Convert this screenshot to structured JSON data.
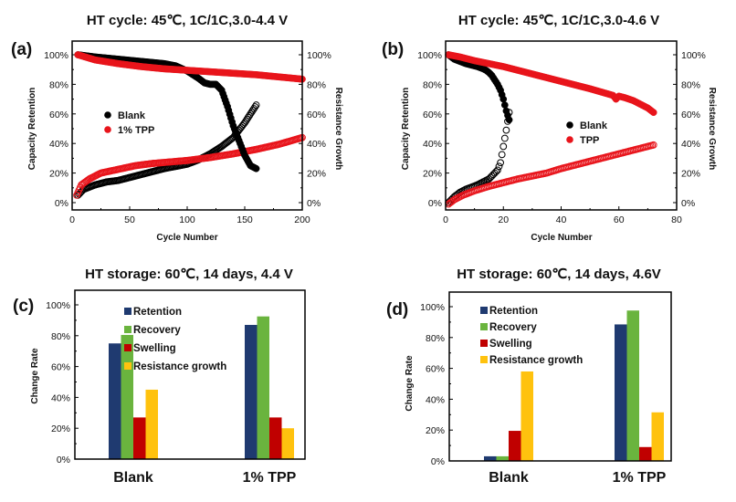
{
  "chart_data": [
    {
      "id": "a",
      "type": "scatter",
      "panel_label": "(a)",
      "title": "HT cycle: 45℃, 1C/1C,3.0-4.4 V",
      "xlabel": "Cycle Number",
      "ylabel": "Capacity Retention",
      "y2label": "Resistance Growth",
      "xlim": [
        0,
        200
      ],
      "ylim": [
        -5,
        112
      ],
      "y2lim": [
        -5,
        112
      ],
      "xticks": [
        0,
        50,
        100,
        150,
        200
      ],
      "xtick_labels": [
        "0",
        "50",
        "100",
        "150",
        "200"
      ],
      "yticks": [
        0,
        20,
        40,
        60,
        80,
        100
      ],
      "ytick_labels": [
        "0%",
        "20%",
        "40%",
        "60%",
        "80%",
        "100%"
      ],
      "y2tick_labels": [
        "0%",
        "20%",
        "40%",
        "60%",
        "80%",
        "100%"
      ],
      "legend": {
        "placement": "center-left",
        "entries": [
          {
            "label": "Blank",
            "color": "#000000"
          },
          {
            "label": "1% TPP",
            "color": "#e8141b"
          }
        ]
      },
      "series": [
        {
          "name": "Blank",
          "metric": "Capacity Retention",
          "marker": "filled",
          "color": "#000000",
          "x": [
            5,
            20,
            40,
            60,
            80,
            90,
            100,
            110,
            115,
            120,
            125,
            130,
            135,
            140,
            145,
            150,
            155,
            160
          ],
          "y": [
            100,
            98.5,
            97,
            95.5,
            94,
            92.5,
            89,
            84,
            81,
            80,
            80,
            76,
            65,
            52,
            42,
            32,
            25,
            23
          ]
        },
        {
          "name": "1% TPP",
          "metric": "Capacity Retention",
          "marker": "filled",
          "color": "#e8141b",
          "x": [
            5,
            20,
            40,
            60,
            80,
            100,
            120,
            140,
            160,
            180,
            200
          ],
          "y": [
            100,
            96.5,
            94,
            92,
            90.5,
            89.5,
            88.5,
            87.5,
            86.5,
            85,
            83.5
          ]
        },
        {
          "name": "Blank",
          "metric": "Resistance Growth",
          "marker": "open",
          "color": "#000000",
          "x": [
            5,
            10,
            20,
            30,
            40,
            50,
            60,
            70,
            80,
            90,
            100,
            110,
            120,
            130,
            140,
            150,
            155,
            160
          ],
          "y": [
            5,
            9,
            12,
            14,
            15,
            17,
            19,
            21,
            23,
            24.5,
            26,
            29,
            33,
            38,
            44,
            54,
            60,
            66
          ]
        },
        {
          "name": "1% TPP",
          "metric": "Resistance Growth",
          "marker": "open",
          "color": "#e8141b",
          "x": [
            4,
            8,
            15,
            25,
            40,
            55,
            70,
            85,
            100,
            120,
            140,
            160,
            180,
            200
          ],
          "y": [
            5,
            12,
            16,
            20,
            22.5,
            25,
            26.5,
            27.5,
            28.5,
            30.5,
            33,
            36,
            39.5,
            44
          ]
        }
      ]
    },
    {
      "id": "b",
      "type": "scatter",
      "panel_label": "(b)",
      "title": "HT cycle: 45℃, 1C/1C,3.0-4.6 V",
      "xlabel": "Cycle Number",
      "ylabel": "Capacity Retention",
      "y2label": "Resistance Growth",
      "xlim": [
        0,
        80
      ],
      "ylim": [
        -5,
        112
      ],
      "y2lim": [
        -5,
        112
      ],
      "xticks": [
        0,
        20,
        40,
        60,
        80
      ],
      "xtick_labels": [
        "0",
        "20",
        "40",
        "60",
        "80"
      ],
      "yticks": [
        0,
        20,
        40,
        60,
        80,
        100
      ],
      "ytick_labels": [
        "0%",
        "20%",
        "40%",
        "60%",
        "80%",
        "100%"
      ],
      "y2tick_labels": [
        "0%",
        "20%",
        "40%",
        "60%",
        "80%",
        "100%"
      ],
      "legend": {
        "placement": "center-right",
        "entries": [
          {
            "label": "Blank",
            "color": "#000000"
          },
          {
            "label": "TPP",
            "color": "#e8141b"
          }
        ]
      },
      "series": [
        {
          "name": "Blank",
          "metric": "Capacity Retention",
          "marker": "filled",
          "color": "#000000",
          "x": [
            1,
            3,
            5,
            7,
            9,
            11,
            13,
            14,
            15,
            16,
            17,
            18,
            19,
            20,
            21,
            22
          ],
          "y": [
            100,
            97,
            95.5,
            94,
            93,
            92,
            90.5,
            89.5,
            88,
            86,
            83,
            80,
            76,
            70,
            62,
            56
          ]
        },
        {
          "name": "TPP",
          "metric": "Capacity Retention",
          "marker": "filled",
          "color": "#e8141b",
          "x": [
            1,
            5,
            10,
            20,
            30,
            40,
            50,
            58,
            59,
            60,
            62,
            65,
            68,
            70,
            72
          ],
          "y": [
            100,
            98.5,
            96,
            92,
            87,
            82,
            77,
            72.5,
            70,
            72,
            71,
            69,
            66,
            64,
            61
          ]
        },
        {
          "name": "Blank",
          "metric": "Resistance Growth",
          "marker": "open",
          "color": "#000000",
          "x": [
            1,
            3,
            5,
            7,
            9,
            11,
            13,
            15,
            16,
            17,
            18,
            19,
            20,
            21,
            22
          ],
          "y": [
            0,
            4,
            7,
            9,
            10.5,
            12,
            14,
            16,
            18,
            20,
            22,
            27,
            38,
            49,
            61
          ]
        },
        {
          "name": "TPP",
          "metric": "Resistance Growth",
          "marker": "open",
          "color": "#e8141b",
          "x": [
            1,
            3,
            6,
            10,
            15,
            20,
            25,
            30,
            35,
            40,
            45,
            50,
            55,
            60,
            65,
            70,
            72
          ],
          "y": [
            -1,
            2,
            5,
            8,
            11,
            13.5,
            16,
            18,
            20,
            23,
            25.5,
            28,
            30.5,
            33,
            35.5,
            38,
            39
          ]
        }
      ]
    },
    {
      "id": "c",
      "type": "bar",
      "panel_label": "(c)",
      "title": "HT storage: 60℃, 14 days, 4.4 V",
      "xlabel": "",
      "ylabel": "Change Rate",
      "ylim": [
        0,
        108
      ],
      "yticks": [
        0,
        20,
        40,
        60,
        80,
        100
      ],
      "ytick_labels": [
        "0%",
        "20%",
        "40%",
        "60%",
        "80%",
        "100%"
      ],
      "categories": [
        "Blank",
        "1% TPP"
      ],
      "legend": {
        "placement": "top-center"
      },
      "series": [
        {
          "name": "Retention",
          "color": "#1f3a70",
          "values": [
            75,
            87
          ]
        },
        {
          "name": "Recovery",
          "color": "#6ab43e",
          "values": [
            80.5,
            92.5
          ]
        },
        {
          "name": "Swelling",
          "color": "#c00000",
          "values": [
            27,
            27
          ]
        },
        {
          "name": "Resistance growth",
          "color": "#ffc20e",
          "values": [
            45,
            20
          ]
        }
      ]
    },
    {
      "id": "d",
      "type": "bar",
      "panel_label": "(d)",
      "title": "HT storage: 60℃, 14 days, 4.6V",
      "xlabel": "",
      "ylabel": "Change Rate",
      "ylim": [
        0,
        108
      ],
      "yticks": [
        0,
        20,
        40,
        60,
        80,
        100
      ],
      "ytick_labels": [
        "0%",
        "20%",
        "40%",
        "60%",
        "80%",
        "100%"
      ],
      "categories": [
        "Blank",
        "1% TPP"
      ],
      "legend": {
        "placement": "top-left"
      },
      "series": [
        {
          "name": "Retention",
          "color": "#1f3a70",
          "values": [
            3,
            88.5
          ]
        },
        {
          "name": "Recovery",
          "color": "#6ab43e",
          "values": [
            3,
            97.5
          ]
        },
        {
          "name": "Swelling",
          "color": "#c00000",
          "values": [
            19.5,
            9
          ]
        },
        {
          "name": "Resistance growth",
          "color": "#ffc20e",
          "values": [
            58,
            31.5
          ]
        }
      ]
    }
  ]
}
